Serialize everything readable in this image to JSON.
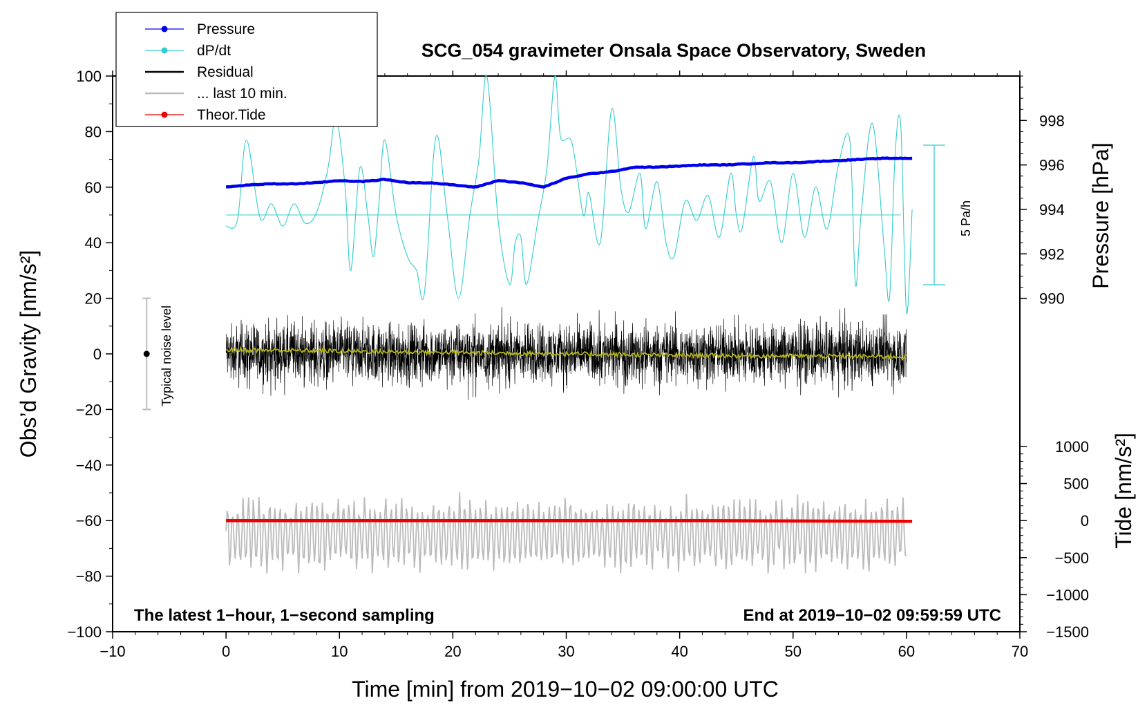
{
  "chart_data": {
    "type": "line",
    "title": "SCG_054 gravimeter Onsala Space Observatory, Sweden",
    "xlabel": "Time [min] from 2019−10−02 09:00:00 UTC",
    "ylabel_left": "Obs’d Gravity [nm/s²]",
    "ylabel_right_top": "Pressure [hPa]",
    "ylabel_right_bottom": "Tide [nm/s²]",
    "xlim": [
      -10,
      70
    ],
    "ylim_left": [
      -100,
      100
    ],
    "x_ticks": [
      "−10",
      "0",
      "10",
      "20",
      "30",
      "40",
      "50",
      "60",
      "70"
    ],
    "x_tick_values": [
      -10,
      0,
      10,
      20,
      30,
      40,
      50,
      60,
      70
    ],
    "y_left_ticks": [
      "100",
      "80",
      "60",
      "40",
      "20",
      "0",
      "−20",
      "−40",
      "−60",
      "−80",
      "−100"
    ],
    "y_left_tick_values": [
      100,
      80,
      60,
      40,
      20,
      0,
      -20,
      -40,
      -60,
      -80,
      -100
    ],
    "pressure_axis": {
      "ticks": [
        "998",
        "996",
        "994",
        "992",
        "990"
      ],
      "tick_values": [
        998,
        996,
        994,
        992,
        990
      ],
      "range": [
        990,
        1000
      ],
      "gravity_equiv": [
        20,
        100
      ]
    },
    "tide_axis": {
      "ticks": [
        "1000",
        "500",
        "0",
        "−500",
        "−1000",
        "−1500"
      ],
      "tick_values": [
        1000,
        500,
        0,
        -500,
        -1000,
        -1500
      ],
      "range": [
        -1500,
        1000
      ],
      "gravity_equiv": [
        -100,
        -33.33
      ]
    },
    "legend": [
      {
        "label": "Pressure",
        "color": "#0000ee",
        "marker": true
      },
      {
        "label": "dP/dt",
        "color": "#33cccc",
        "marker": true
      },
      {
        "label": "Residual",
        "color": "#000000",
        "marker": false
      },
      {
        "label": "... last 10 min.",
        "color": "#bbbbbb",
        "marker": false
      },
      {
        "label": "Theor.Tide",
        "color": "#ee0000",
        "marker": true
      }
    ],
    "series": [
      {
        "name": "Pressure",
        "unit": "hPa",
        "color": "#0000ee",
        "x": [
          0,
          2,
          4,
          6,
          8,
          10,
          12,
          14,
          16,
          18,
          20,
          22,
          24,
          26,
          28,
          30,
          32,
          34,
          36,
          38,
          40,
          42,
          44,
          46,
          48,
          50,
          52,
          54,
          56,
          58,
          60.5
        ],
        "values": [
          995.0,
          995.1,
          995.15,
          995.15,
          995.2,
          995.3,
          995.25,
          995.35,
          995.2,
          995.2,
          995.1,
          995.0,
          995.3,
          995.2,
          995.0,
          995.4,
          995.6,
          995.7,
          995.9,
          995.9,
          995.95,
          996.0,
          996.0,
          996.05,
          996.1,
          996.1,
          996.15,
          996.2,
          996.25,
          996.3,
          996.3
        ]
      },
      {
        "name": "dP/dt",
        "unit": "relative",
        "color": "#33cccc",
        "baseline": 50,
        "x": [
          0,
          1,
          1.8,
          3,
          4,
          5,
          6,
          7,
          8,
          9,
          9.7,
          10.5,
          11,
          11.8,
          12.5,
          13,
          13.5,
          14,
          15,
          16,
          16.8,
          17.5,
          18.5,
          19.5,
          20.5,
          21.5,
          22.3,
          23,
          24,
          25,
          25.5,
          26,
          26.5,
          27.5,
          28.3,
          29,
          29.5,
          30.5,
          31.5,
          32,
          33,
          34,
          34.8,
          35.5,
          36.5,
          37,
          38,
          38.8,
          39.5,
          40.5,
          41.5,
          42.5,
          43.5,
          44.5,
          45,
          45.5,
          46.5,
          47,
          48,
          49,
          50,
          51,
          52,
          53,
          54,
          55,
          55.5,
          56,
          57,
          58,
          58.5,
          59,
          59.5,
          60,
          60.5
        ],
        "values": [
          46,
          48,
          77,
          49,
          54,
          46,
          54,
          47,
          51,
          67,
          85,
          60,
          30,
          67,
          50,
          35,
          55,
          77,
          50,
          35,
          30,
          22,
          78,
          50,
          20,
          50,
          70,
          100,
          48,
          25,
          40,
          42,
          25,
          48,
          67,
          100,
          78,
          76,
          50,
          58,
          40,
          88,
          60,
          51,
          65,
          45,
          62,
          40,
          35,
          55,
          48,
          57,
          42,
          65,
          50,
          45,
          71,
          55,
          62,
          40,
          65,
          42,
          60,
          45,
          68,
          77,
          25,
          50,
          83,
          40,
          20,
          72,
          82,
          15,
          52
        ]
      },
      {
        "name": "Residual",
        "unit": "nm/s²",
        "color": "#000000",
        "x_range": [
          0,
          60
        ],
        "amplitude": 20,
        "envelope": [
          -27,
          24
        ]
      },
      {
        "name": "Residual (smoothed)",
        "unit": "nm/s²",
        "color": "#b5b517",
        "x": [
          0,
          10,
          20,
          30,
          40,
          50,
          60
        ],
        "values": [
          1.5,
          1.0,
          0.5,
          0.0,
          -0.5,
          -0.8,
          -1.0
        ]
      },
      {
        "name": "... last 10 min.",
        "unit": "nm/s²",
        "color": "#bbbbbb",
        "center": -65,
        "envelope": [
          -79,
          -42
        ]
      },
      {
        "name": "Theor.Tide",
        "unit": "nm/s²",
        "color": "#ee0000",
        "x": [
          0,
          10,
          20,
          30,
          40,
          50,
          55,
          60.5
        ],
        "values": [
          0,
          0,
          0,
          0,
          0,
          -5,
          -8,
          -10
        ]
      }
    ],
    "annotations": {
      "dpdt_scale": "5 Pa/h",
      "noise_label": "Typical noise level",
      "noise_range": [
        -20,
        20
      ],
      "noise_x": -7,
      "bottom_left": "The latest 1−hour, 1−second sampling",
      "bottom_right": "End at 2019−10−02 09:59:59 UTC"
    }
  }
}
